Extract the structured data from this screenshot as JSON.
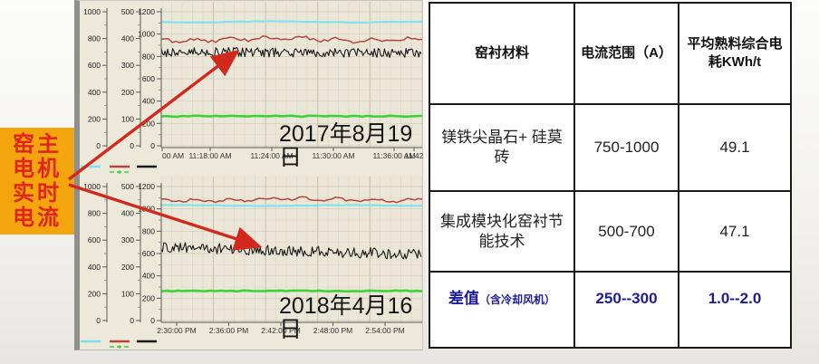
{
  "left_label": {
    "lines": [
      "窑主",
      "电机",
      "实时",
      "电流"
    ],
    "bg_color": "#f2a50c",
    "text_color": "#e0251b"
  },
  "annotation": {
    "arrow_color": "#d3281e"
  },
  "chart_data": [
    {
      "type": "line",
      "date_label": "2017年8月19日",
      "x_ticks": [
        "00 AM",
        "11:18:00 AM",
        "11:24:00 AM",
        "11:30:00 AM",
        "11:36:00 AM",
        "11:42"
      ],
      "y_axes": [
        {
          "ticks": [
            1000,
            800,
            600,
            400,
            200,
            0
          ],
          "range": [
            0,
            1000
          ]
        },
        {
          "ticks": [
            500,
            400,
            300,
            200,
            100,
            0
          ],
          "range": [
            0,
            500
          ]
        },
        {
          "ticks": [
            1200,
            1000,
            800,
            600,
            400,
            200,
            0
          ],
          "range": [
            0,
            1200
          ]
        }
      ],
      "ylim": [
        0,
        1200
      ],
      "grid": true,
      "legend_position": "bottom-left",
      "series": [
        {
          "name": "cyan",
          "color": "#79e4ee",
          "level": 1110,
          "amp": 14,
          "drift": 0,
          "style": "smooth"
        },
        {
          "name": "red",
          "color": "#b5463c",
          "level": 952,
          "amp": 38,
          "drift": 0,
          "style": "wavy"
        },
        {
          "name": "black",
          "color": "#171717",
          "level": 840,
          "amp": 42,
          "drift": -10,
          "style": "noisy"
        },
        {
          "name": "green",
          "color": "#3bd335",
          "level": 265,
          "amp": 10,
          "drift": 0,
          "style": "flat"
        }
      ]
    },
    {
      "type": "line",
      "date_label": "2018年4月16日",
      "x_ticks": [
        "2:30:00 PM",
        "2:36:00 PM",
        "2:42:00 PM",
        "2:48:00 PM",
        "2:54:00 PM"
      ],
      "y_axes": [
        {
          "ticks": [
            1000,
            800,
            600,
            400,
            200,
            0
          ],
          "range": [
            0,
            1000
          ]
        },
        {
          "ticks": [
            500,
            400,
            300,
            200,
            100,
            0
          ],
          "range": [
            0,
            500
          ]
        },
        {
          "ticks": [
            1200,
            1000,
            800,
            600,
            400,
            200,
            0
          ],
          "range": [
            0,
            1200
          ]
        }
      ],
      "ylim": [
        0,
        1200
      ],
      "grid": true,
      "legend_position": "bottom-left",
      "series": [
        {
          "name": "cyan",
          "color": "#79e4ee",
          "level": 1030,
          "amp": 10,
          "drift": 0,
          "style": "smooth"
        },
        {
          "name": "red",
          "color": "#b5463c",
          "level": 1082,
          "amp": 34,
          "drift": 0,
          "style": "wavy"
        },
        {
          "name": "black",
          "color": "#171717",
          "level": 660,
          "amp": 48,
          "drift": -70,
          "style": "noisy"
        },
        {
          "name": "green",
          "color": "#3bd335",
          "level": 265,
          "amp": 8,
          "drift": 0,
          "style": "flat"
        }
      ]
    }
  ],
  "table": {
    "headers": [
      "窑衬材料",
      "电流范围（A）",
      "平均熟料综合电耗KWh/t"
    ],
    "rows": [
      {
        "highlight": false,
        "cells": [
          "镁铁尖晶石+ 硅莫砖",
          "750-1000",
          "49.1"
        ]
      },
      {
        "highlight": false,
        "cells": [
          "集成模块化窑衬节能技术",
          "500-700",
          "47.1"
        ]
      },
      {
        "highlight": true,
        "cells": [
          {
            "text": "差值",
            "suffix": "（含冷却风机）"
          },
          "250--300",
          "1.0--2.0"
        ]
      }
    ],
    "highlight_color": "#1c1c9b"
  }
}
